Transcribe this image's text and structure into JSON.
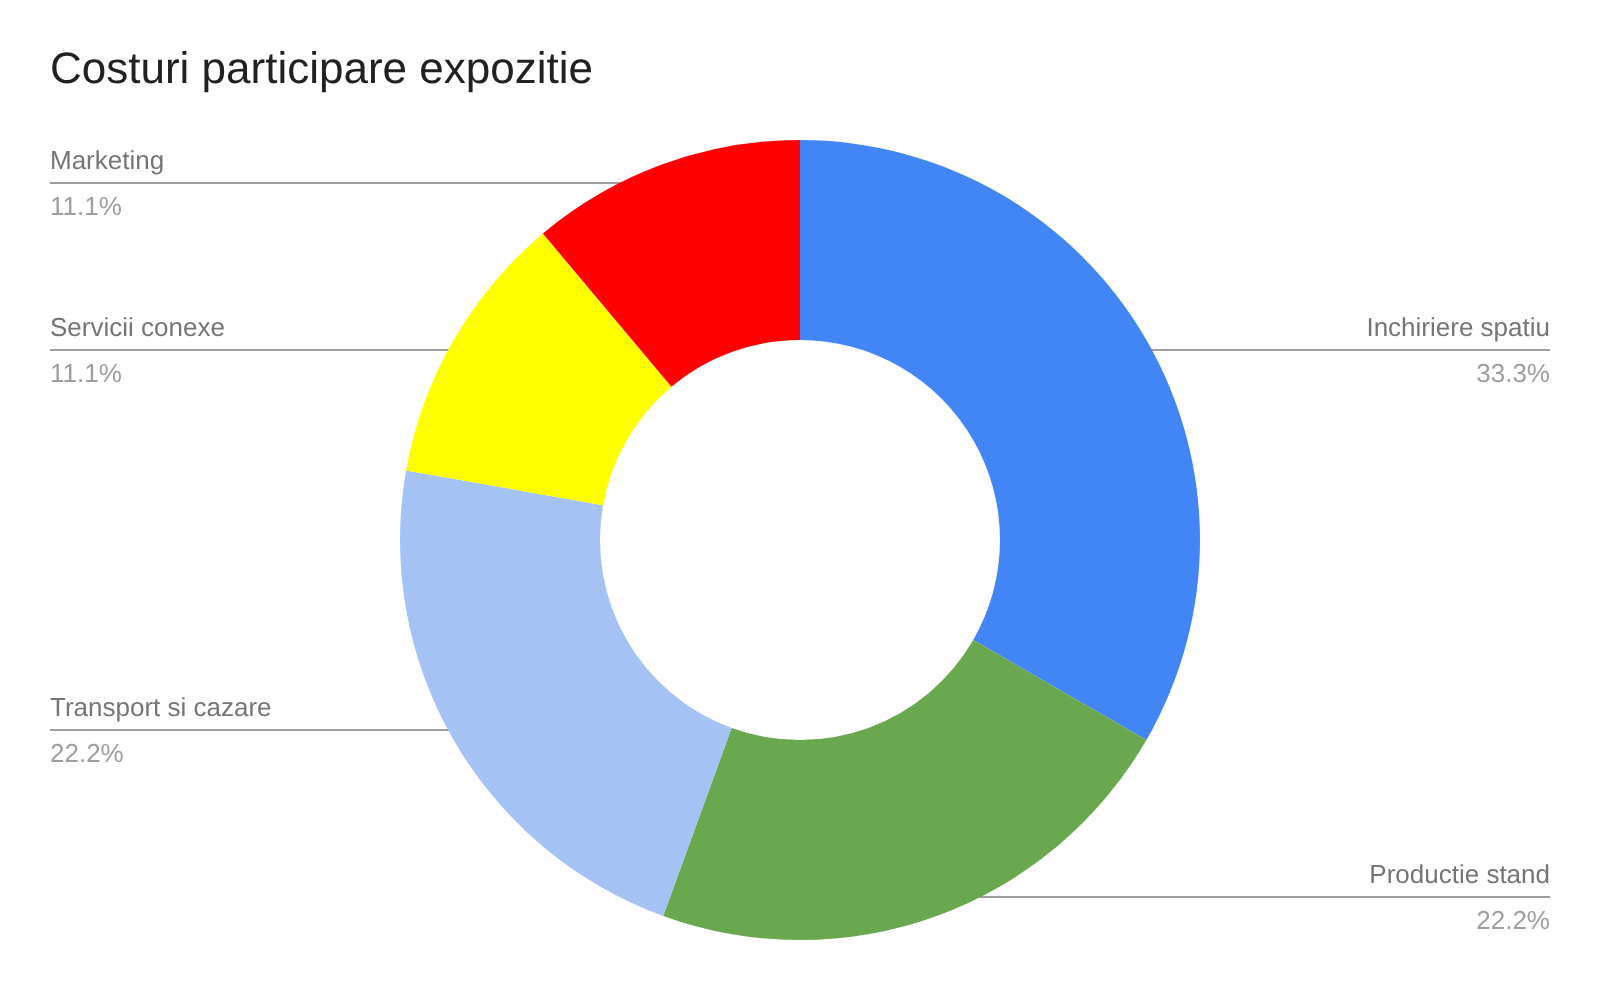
{
  "chart_data": {
    "type": "donut",
    "title": "Costuri participare expozitie",
    "categories": [
      "Inchiriere spatiu",
      "Productie stand",
      "Transport si cazare",
      "Servicii conexe",
      "Marketing"
    ],
    "values": [
      33.3,
      22.2,
      22.2,
      11.1,
      11.1
    ],
    "colors": [
      "#4285f4",
      "#6aa84f",
      "#a4c2f4",
      "#ffff00",
      "#ff0000"
    ],
    "value_labels": [
      "33.3%",
      "22.2%",
      "22.2%",
      "11.1%",
      "11.1%"
    ]
  }
}
